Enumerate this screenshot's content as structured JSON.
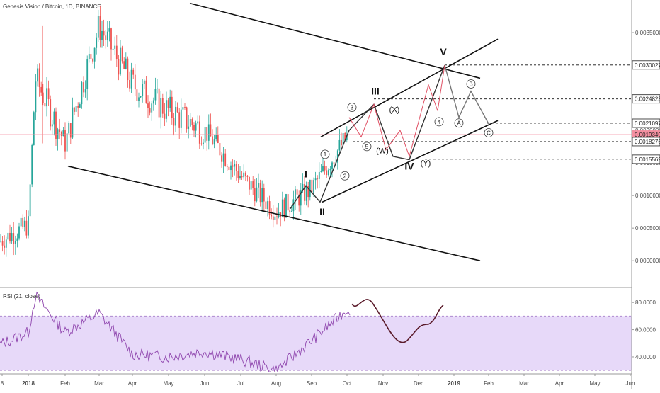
{
  "header": {
    "title": "Genesis Vision / Bitcoin, 1D, BINANCE"
  },
  "rsi_panel": {
    "label": "RSI (21, close)"
  },
  "chart_data": [
    {
      "type": "candlestick",
      "title": "Genesis Vision / Bitcoin, 1D, BINANCE",
      "xlabel": "",
      "ylabel": "",
      "x_tick_labels": [
        "8",
        "2018",
        "Feb",
        "Mar",
        "Apr",
        "May",
        "Jun",
        "Jul",
        "Aug",
        "Sep",
        "Oct",
        "Nov",
        "Dec",
        "2019",
        "Feb",
        "Mar",
        "Apr",
        "May",
        "Jun"
      ],
      "y_tick_labels": [
        "0.0035000",
        "0.0030000",
        "0.0025000",
        "0.0020000",
        "0.0015000",
        "0.0010000",
        "0.0005000",
        "0.0000000"
      ],
      "ylim": [
        -0.0004,
        0.004
      ],
      "grid": false,
      "scale": "linear",
      "last_price": "0.0019349",
      "last_price_color": "#f48fa0",
      "up_color": "#26a69a",
      "down_color": "#ef5350",
      "price_labels": [
        "0.0030027",
        "0.0024823",
        "0.0021097",
        "0.0019349",
        "0.0018276",
        "0.0015569"
      ],
      "price_close_path": [
        [
          "Dec 2017",
          0.0003
        ],
        [
          "2018",
          0.00055
        ],
        [
          "Jan 2018",
          0.0028
        ],
        [
          "Feb 2018",
          0.0018
        ],
        [
          "Mar 2018",
          0.0036
        ],
        [
          "Apr 2018",
          0.0027
        ],
        [
          "May 2018",
          0.0023
        ],
        [
          "Jun 2018",
          0.002
        ],
        [
          "Jul 2018",
          0.0013
        ],
        [
          "Aug 2018",
          0.00075
        ],
        [
          "Sep 2018",
          0.0011
        ],
        [
          "Oct 2018",
          0.0019
        ]
      ],
      "projection_prices": [
        [
          "Oct 2018",
          0.0019
        ],
        [
          "Nov 2018",
          0.0014
        ],
        [
          "Dec 2018",
          0.003
        ],
        [
          "2019",
          0.0021
        ]
      ],
      "wave_labels": [
        "I",
        "II",
        "III",
        "IV",
        "V",
        "(W)",
        "(X)",
        "(Y)",
        "A",
        "B",
        "C",
        "1",
        "2",
        "3",
        "4",
        "5"
      ],
      "series": []
    },
    {
      "type": "line",
      "title": "RSI (21, close)",
      "y_tick_labels": [
        "80.0000",
        "60.0000",
        "40.0000"
      ],
      "ylim": [
        28,
        90
      ],
      "band": [
        30,
        70
      ],
      "band_color": "#e7d9f9",
      "line_color": "#8e44ad",
      "projection_color": "#5a1a2a",
      "values_path": [
        [
          "Dec 2017",
          49
        ],
        [
          "2018",
          58
        ],
        [
          "Jan 2018",
          85
        ],
        [
          "Feb 2018",
          58
        ],
        [
          "Mar 2018",
          72
        ],
        [
          "Apr 2018",
          42
        ],
        [
          "May 2018",
          40
        ],
        [
          "Jun 2018",
          44
        ],
        [
          "Jul 2018",
          38
        ],
        [
          "Aug 2018",
          30
        ],
        [
          "Sep 2018",
          52
        ],
        [
          "Oct 2018",
          75
        ]
      ],
      "projection_path": [
        [
          "Oct 2018",
          78
        ],
        [
          "Nov 2018",
          79
        ],
        [
          "Dec 2018",
          52
        ],
        [
          "2019",
          77
        ]
      ]
    }
  ]
}
